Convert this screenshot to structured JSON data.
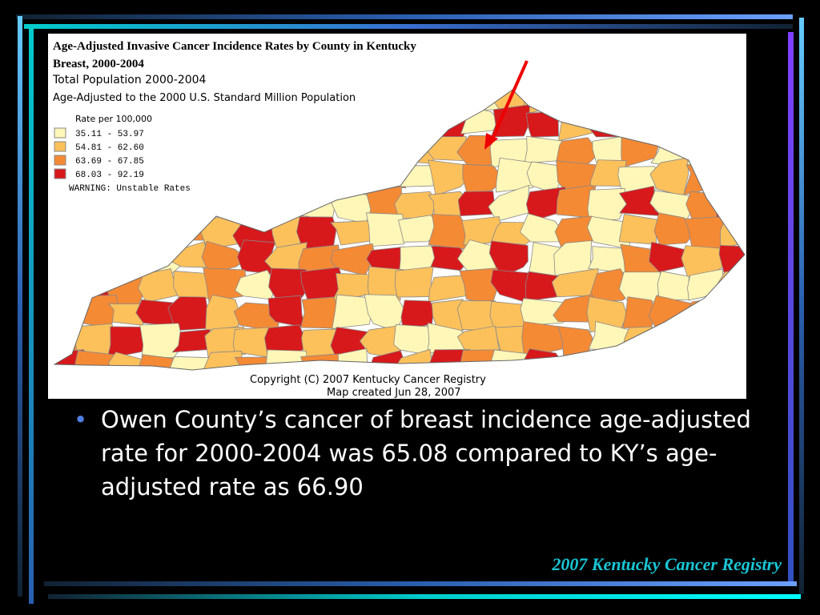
{
  "map": {
    "title_lines": [
      "Age-Adjusted Invasive Cancer Incidence Rates by County in Kentucky",
      "Breast, 2000-2004"
    ],
    "subtitle_lines": [
      "Total Population 2000-2004",
      "Age-Adjusted to the 2000 U.S. Standard Million Population"
    ],
    "legend_title": "Rate per 100,000",
    "legend": [
      {
        "label": "35.11  -  53.97",
        "color": "#fff7b8"
      },
      {
        "label": "54.81  -  62.60",
        "color": "#fdc15c"
      },
      {
        "label": "63.69  -  67.85",
        "color": "#f58a35"
      },
      {
        "label": "68.03  -  92.19",
        "color": "#d7191c"
      }
    ],
    "warning": "WARNING:  Unstable Rates",
    "copyright": "Copyright (C) 2007 Kentucky Cancer Registry",
    "created": "Map created Jun 28, 2007"
  },
  "bullet": "Owen County’s cancer of breast incidence age-adjusted rate for 2000-2004 was 65.08 compared to KY’s age-adjusted rate as 66.90",
  "footer": "2007 Kentucky Cancer Registry"
}
